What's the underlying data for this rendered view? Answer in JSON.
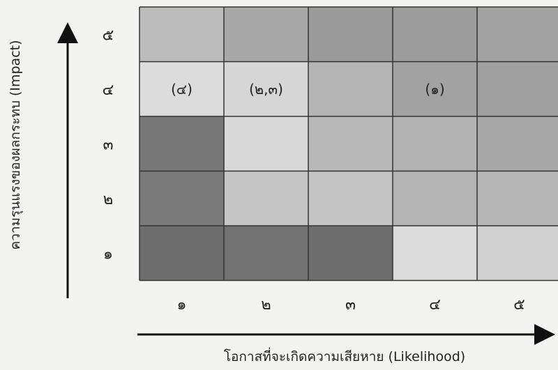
{
  "chart_data": {
    "type": "heatmap",
    "xlabel": "โอกาสที่จะเกิดความเสียหาย (Likelihood)",
    "ylabel": "ความรุนแรงของผลกระทบ (Impact)",
    "x_ticks": [
      "๑",
      "๒",
      "๓",
      "๔",
      "๕"
    ],
    "y_ticks": [
      "๑",
      "๒",
      "๓",
      "๔",
      "๕"
    ],
    "cell_shades": [
      [
        "#6e6e6e",
        "#727272",
        "#6e6e6e",
        "#dcdcdc",
        "#d0d0d0"
      ],
      [
        "#7a7a7a",
        "#c6c6c6",
        "#c4c4c4",
        "#b4b4b4",
        "#b6b6b6"
      ],
      [
        "#777777",
        "#d8d8d8",
        "#b8b8b8",
        "#b2b2b2",
        "#a8a8a8"
      ],
      [
        "#dcdcdc",
        "#d6d6d6",
        "#b4b4b4",
        "#a2a2a2",
        "#a0a0a0"
      ],
      [
        "#bcbcbc",
        "#a8a8a8",
        "#9a9a9a",
        "#9c9c9c",
        "#a2a2a2"
      ]
    ],
    "cell_labels": [
      {
        "x": 1,
        "y": 4,
        "text": "(๔)"
      },
      {
        "x": 2,
        "y": 4,
        "text": "(๒,๓)"
      },
      {
        "x": 4,
        "y": 4,
        "text": "(๑)"
      }
    ]
  }
}
